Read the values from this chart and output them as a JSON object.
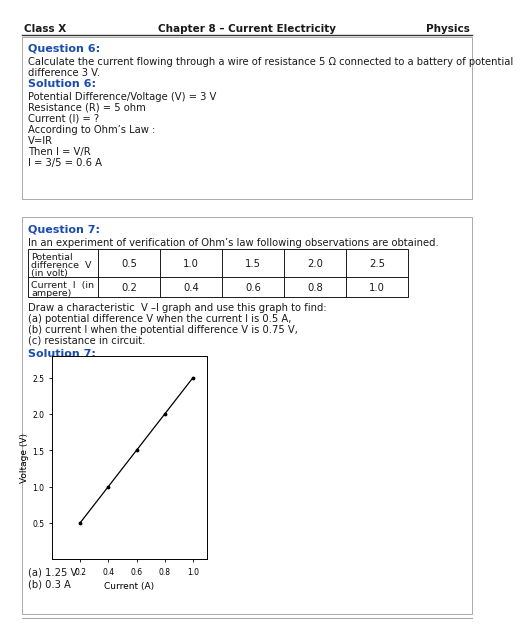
{
  "header_left": "Class X",
  "header_center": "Chapter 8 – Current Electricity",
  "header_right": "Physics",
  "q6_title": "Question 6:",
  "q6_body": "Calculate the current flowing through a wire of resistance 5 Ω connected to a battery of potential difference 3 V.",
  "sol6_title": "Solution 6:",
  "sol6_lines": [
    "Potential Difference/Voltage (V) = 3 V",
    "Resistance (R) = 5 ohm",
    "Current (I) = ?",
    "According to Ohm’s Law :",
    "V=IR",
    "Then I = V/R",
    "I = 3/5 = 0.6 A"
  ],
  "q7_title": "Question 7:",
  "q7_body": "In an experiment of verification of Ohm’s law following observations are obtained.",
  "table_row1_label1": "Potential",
  "table_row1_label2": "difference  V",
  "table_row1_label3": "(in volt)",
  "table_row2_label1": "Current  I  (in",
  "table_row2_label2": "ampere)",
  "table_V": [
    "0.5",
    "1.0",
    "1.5",
    "2.0",
    "2.5"
  ],
  "table_I": [
    "0.2",
    "0.4",
    "0.6",
    "0.8",
    "1.0"
  ],
  "q7_instructions": [
    "Draw a characteristic  V –I graph and use this graph to find:",
    "(a) potential difference V when the current I is 0.5 A,",
    "(b) current I when the potential difference V is 0.75 V,",
    "(c) resistance in circuit."
  ],
  "sol7_title": "Solution 7:",
  "graph_xlabel": "Current (A)",
  "graph_ylabel": "Voltage (V)",
  "graph_I": [
    0.2,
    0.4,
    0.6,
    0.8,
    1.0
  ],
  "graph_V": [
    0.5,
    1.0,
    1.5,
    2.0,
    2.5
  ],
  "graph_xticks": [
    0.2,
    0.4,
    0.6,
    0.8,
    1.0
  ],
  "graph_yticks": [
    0.5,
    1.0,
    1.5,
    2.0,
    2.5
  ],
  "answers": [
    "(a) 1.25 V",
    "(b) 0.3 A"
  ],
  "blue_color": "#1a4cb0",
  "text_color": "#1a1a1a",
  "border_color": "#888888",
  "header_line_color": "#333333",
  "box_border_color": "#aaaaaa",
  "bottom_line_color": "#aaaaaa"
}
